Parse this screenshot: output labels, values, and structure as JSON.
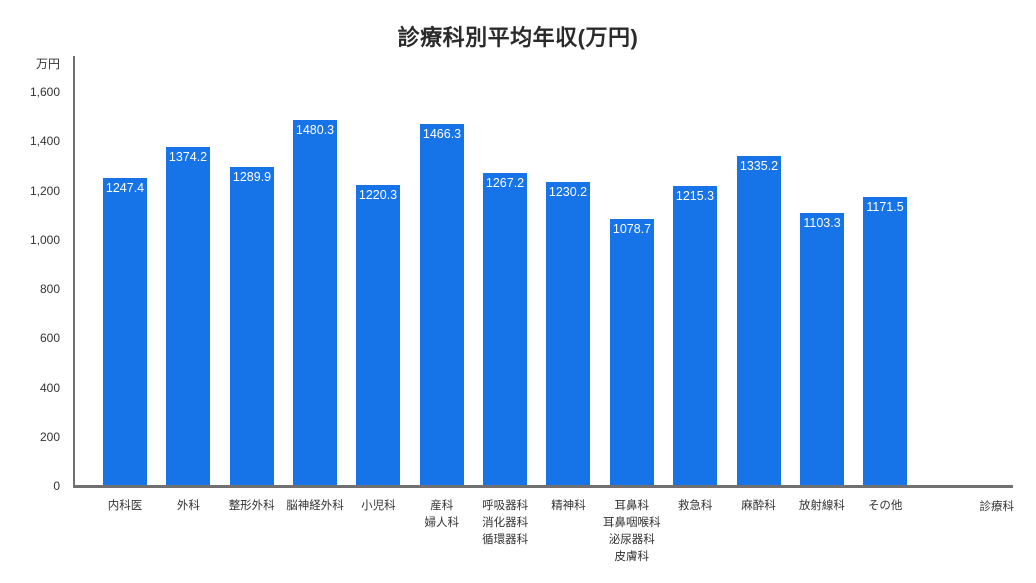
{
  "chart_data": {
    "type": "bar",
    "title": "診療科別平均年収(万円)",
    "xlabel": "診療科",
    "ylabel": "万円",
    "ylim": [
      0,
      1600
    ],
    "ytick_step": 200,
    "ytick_labels": [
      "0",
      "200",
      "400",
      "600",
      "800",
      "1,000",
      "1,200",
      "1,400",
      "1,600"
    ],
    "categories": [
      "内科医",
      "外科",
      "整形外科",
      "脳神経外科",
      "小児科",
      "産科\n婦人科",
      "呼吸器科\n消化器科\n循環器科",
      "精神科",
      "耳鼻科\n耳鼻咽喉科\n泌尿器科\n皮膚科",
      "救急科",
      "麻酔科",
      "放射線科",
      "その他"
    ],
    "values": [
      1247.4,
      1374.2,
      1289.9,
      1480.3,
      1220.3,
      1466.3,
      1267.2,
      1230.2,
      1078.7,
      1215.3,
      1335.2,
      1103.3,
      1171.5
    ],
    "value_labels": [
      "1247.4",
      "1374.2",
      "1289.9",
      "1480.3",
      "1220.3",
      "1466.3",
      "1267.2",
      "1230.2",
      "1078.7",
      "1215.3",
      "1335.2",
      "1103.3",
      "1171.5"
    ],
    "bar_color": "#1673e8",
    "value_label_color": "#ffffff",
    "axis_color": "#707070",
    "text_color": "#333333",
    "legend_position": "none",
    "grid": false
  }
}
